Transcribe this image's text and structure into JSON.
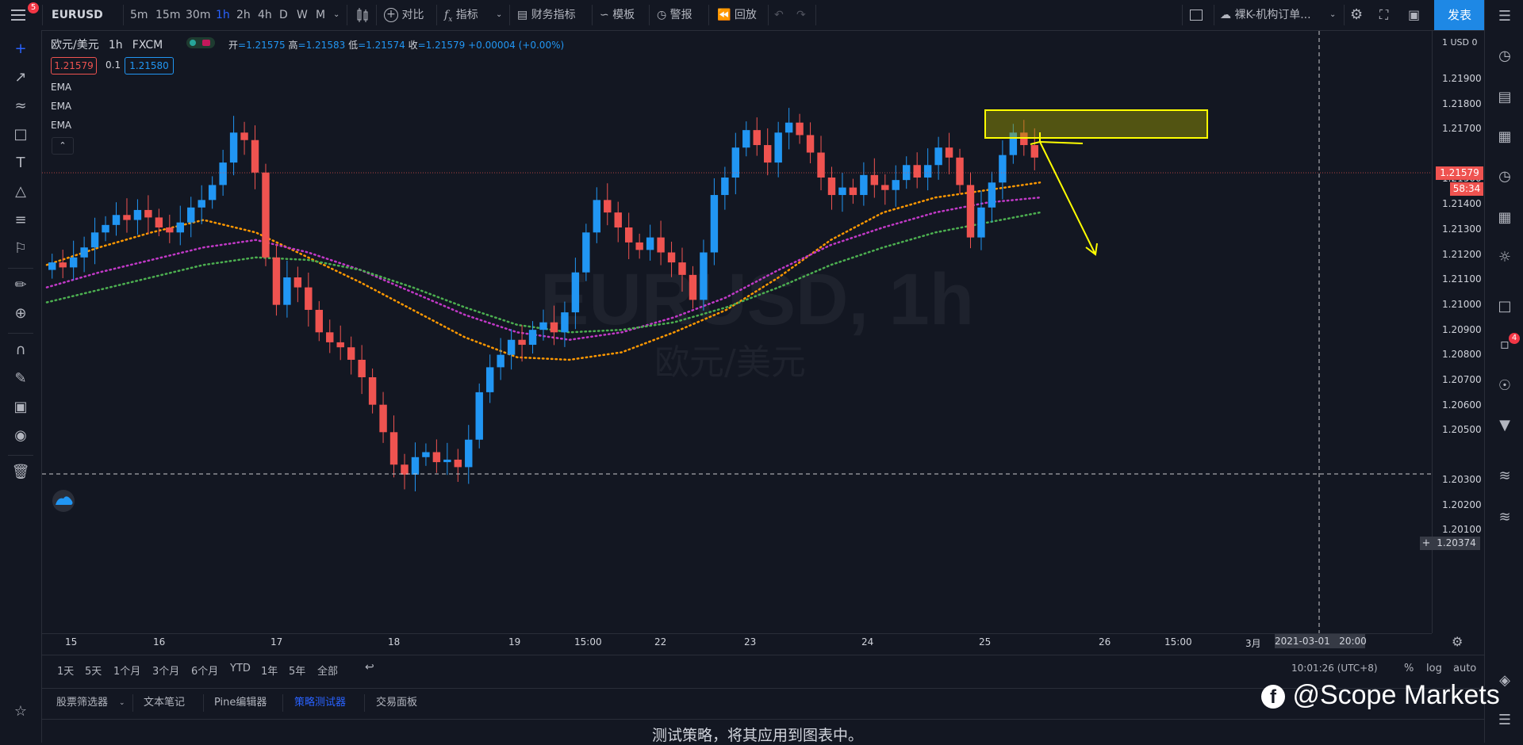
{
  "topbar": {
    "menu_badge": "5",
    "symbol": "EURUSD",
    "intervals": [
      "5m",
      "15m",
      "30m",
      "1h",
      "2h",
      "4h",
      "D",
      "W",
      "M"
    ],
    "active_interval": "1h",
    "compare": "对比",
    "indicators": "指标",
    "financials": "财务指标",
    "templates": "模板",
    "alerts": "警报",
    "replay": "回放",
    "layout_name": "裸K-机构订单...",
    "publish": "发表"
  },
  "legend": {
    "title": "欧元/美元",
    "interval": "1h",
    "source": "FXCM",
    "o_label": "开",
    "o": "=1.21575",
    "h_label": "高",
    "h": "=1.21583",
    "l_label": "低",
    "l": "=1.21574",
    "c_label": "收",
    "c": "=1.21579",
    "change": "+0.00004 (+0.00%)",
    "bid": "1.21579",
    "spread": "0.1",
    "ask": "1.21580",
    "indicators": [
      "EMA",
      "EMA",
      "EMA"
    ]
  },
  "watermark": {
    "symbol": "EURUSD, 1h",
    "name": "欧元/美元"
  },
  "price_axis": {
    "currency": "1 USD 0",
    "labels": [
      "1.21900",
      "1.21800",
      "1.21700",
      "1.21500",
      "1.21400",
      "1.21300",
      "1.21200",
      "1.21100",
      "1.21000",
      "1.20900",
      "1.20800",
      "1.20700",
      "1.20600",
      "1.20500",
      "1.20300",
      "1.20200",
      "1.20100"
    ],
    "current_price": "1.21579",
    "countdown": "58:34",
    "crosshair_price": "1.20374"
  },
  "time_axis": {
    "labels": [
      "15",
      "16",
      "17",
      "18",
      "19",
      "15:00",
      "22",
      "23",
      "24",
      "25",
      "26",
      "15:00",
      "3月"
    ],
    "crosshair_time": "2021-03-01   20:00"
  },
  "range_bar": {
    "ranges": [
      "1天",
      "5天",
      "1个月",
      "3个月",
      "6个月",
      "YTD",
      "1年",
      "5年",
      "全部"
    ],
    "clock": "10:01:26 (UTC+8)",
    "percent": "%",
    "log": "log",
    "auto": "auto"
  },
  "bottom_tabs": {
    "tabs": [
      "股票筛选器",
      "文本笔记",
      "Pine编辑器",
      "策略测试器",
      "交易面板"
    ],
    "active": "策略测试器",
    "message": "测试策略，将其应用到图表中。"
  },
  "watermark_brand": "@Scope Markets",
  "right_badge": "4",
  "colors": {
    "up": "#2196f3",
    "down": "#ef5350",
    "ema_fast": "#ff9800",
    "ema_mid": "#c139c7",
    "ema_slow": "#4caf50",
    "zone": "#ffff00",
    "accent": "#2962ff"
  },
  "chart_data": {
    "type": "candlestick",
    "closes": [
      1.2116,
      1.2114,
      1.2118,
      1.2122,
      1.2128,
      1.2131,
      1.2135,
      1.2133,
      1.2137,
      1.2134,
      1.213,
      1.2128,
      1.2132,
      1.2138,
      1.2141,
      1.2147,
      1.2156,
      1.2168,
      1.2165,
      1.2152,
      1.2118,
      1.2099,
      1.211,
      1.2106,
      1.2097,
      1.2088,
      1.2084,
      1.2082,
      1.2077,
      1.207,
      1.2059,
      1.2048,
      1.2035,
      1.2031,
      1.2038,
      1.204,
      1.2036,
      1.2037,
      1.2034,
      1.2045,
      1.2064,
      1.2074,
      1.2079,
      1.2085,
      1.2083,
      1.2089,
      1.2092,
      1.2088,
      1.2096,
      1.2112,
      1.2128,
      1.2141,
      1.2136,
      1.213,
      1.2124,
      1.2121,
      1.2126,
      1.212,
      1.2116,
      1.2111,
      1.2101,
      1.212,
      1.2143,
      1.215,
      1.2162,
      1.2169,
      1.2163,
      1.2156,
      1.2168,
      1.2172,
      1.2167,
      1.216,
      1.215,
      1.2143,
      1.2146,
      1.2143,
      1.2151,
      1.2147,
      1.2145,
      1.2149,
      1.2155,
      1.215,
      1.2155,
      1.2162,
      1.2158,
      1.2147,
      1.2126,
      1.2138,
      1.2148,
      1.2159,
      1.2168,
      1.2163,
      1.2158
    ],
    "ylim": [
      1.201,
      1.22
    ],
    "zone": {
      "from": 1.21635,
      "to": 1.2172
    },
    "ema_fast": [
      1.2115,
      1.2122,
      1.2128,
      1.2133,
      1.2128,
      1.2118,
      1.2108,
      1.2097,
      1.2086,
      1.2078,
      1.2077,
      1.208,
      1.2088,
      1.2097,
      1.211,
      1.2125,
      1.2136,
      1.2142,
      1.2145,
      1.2148
    ],
    "ema_mid": [
      1.2106,
      1.2112,
      1.2117,
      1.2122,
      1.2125,
      1.212,
      1.2113,
      1.2104,
      1.2095,
      1.2088,
      1.2085,
      1.2088,
      1.2094,
      1.2102,
      1.2113,
      1.2123,
      1.213,
      1.2136,
      1.214,
      1.2142
    ],
    "ema_slow": [
      1.21,
      1.2105,
      1.211,
      1.2115,
      1.2118,
      1.2117,
      1.2113,
      1.2106,
      1.2098,
      1.2091,
      1.2088,
      1.2089,
      1.2092,
      1.2098,
      1.2106,
      1.2115,
      1.2122,
      1.2128,
      1.2132,
      1.2136
    ]
  }
}
